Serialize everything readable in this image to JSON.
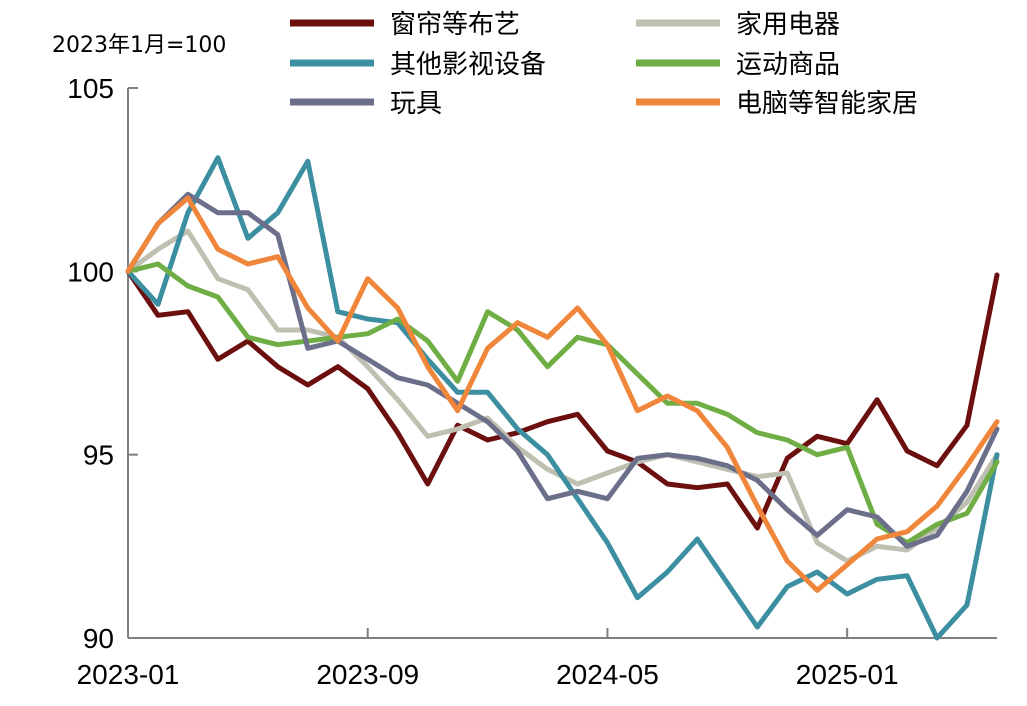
{
  "chart_data": {
    "type": "line",
    "unit_note": "2023年1月=100",
    "x": [
      "2023-01",
      "2023-02",
      "2023-03",
      "2023-04",
      "2023-05",
      "2023-06",
      "2023-07",
      "2023-08",
      "2023-09",
      "2023-10",
      "2023-11",
      "2023-12",
      "2024-01",
      "2024-02",
      "2024-03",
      "2024-04",
      "2024-05",
      "2024-06",
      "2024-07",
      "2024-08",
      "2024-09",
      "2024-10",
      "2024-11",
      "2024-12",
      "2025-01",
      "2025-02",
      "2025-03",
      "2025-04",
      "2025-05",
      "2025-06"
    ],
    "x_tick_labels": [
      "2023-01",
      "2023-09",
      "2024-05",
      "2025-01"
    ],
    "y_tick_labels": [
      "90",
      "95",
      "100",
      "105"
    ],
    "ylim": [
      90,
      105
    ],
    "series": [
      {
        "name": "窗帘等布艺",
        "color": "#6b0f0f",
        "values": [
          100,
          98.8,
          98.9,
          97.6,
          98.1,
          97.4,
          96.9,
          97.4,
          96.8,
          95.6,
          94.2,
          95.8,
          95.4,
          95.6,
          95.9,
          96.1,
          95.1,
          94.8,
          94.2,
          94.1,
          94.2,
          93.0,
          94.9,
          95.5,
          95.3,
          96.5,
          95.1,
          94.7,
          95.8,
          99.9
        ]
      },
      {
        "name": "家用电器",
        "color": "#bfbfb2",
        "values": [
          100,
          100.6,
          101.1,
          99.8,
          99.5,
          98.4,
          98.4,
          98.2,
          97.4,
          96.5,
          95.5,
          95.7,
          96.0,
          95.2,
          94.6,
          94.2,
          94.5,
          94.8,
          95.0,
          94.8,
          94.6,
          94.4,
          94.5,
          92.6,
          92.1,
          92.5,
          92.4,
          93.0,
          93.7,
          95.0
        ]
      },
      {
        "name": "其他影视设备",
        "color": "#3c8fa0",
        "values": [
          100,
          99.1,
          101.6,
          103.1,
          100.9,
          101.6,
          103.0,
          98.9,
          98.7,
          98.6,
          97.6,
          96.7,
          96.7,
          95.7,
          95.0,
          93.8,
          92.6,
          91.1,
          91.8,
          92.7,
          91.5,
          90.3,
          91.4,
          91.8,
          91.2,
          91.6,
          91.7,
          90.0,
          90.9,
          95.0
        ]
      },
      {
        "name": "运动商品",
        "color": "#6fae45",
        "values": [
          100,
          100.2,
          99.6,
          99.3,
          98.2,
          98.0,
          98.1,
          98.2,
          98.3,
          98.7,
          98.1,
          97.0,
          98.9,
          98.4,
          97.4,
          98.2,
          98.0,
          97.2,
          96.4,
          96.4,
          96.1,
          95.6,
          95.4,
          95.0,
          95.2,
          93.1,
          92.6,
          93.1,
          93.4,
          94.8
        ]
      },
      {
        "name": "玩具",
        "color": "#6b6f8a",
        "values": [
          100,
          101.3,
          102.1,
          101.6,
          101.6,
          101.0,
          97.9,
          98.1,
          97.6,
          97.1,
          96.9,
          96.4,
          95.9,
          95.1,
          93.8,
          94.0,
          93.8,
          94.9,
          95.0,
          94.9,
          94.7,
          94.3,
          93.5,
          92.8,
          93.5,
          93.3,
          92.5,
          92.8,
          94.0,
          95.7
        ]
      },
      {
        "name": "电脑等智能家居",
        "color": "#f0863a",
        "values": [
          100,
          101.3,
          102.0,
          100.6,
          100.2,
          100.4,
          99.0,
          98.1,
          99.8,
          99.0,
          97.4,
          96.2,
          97.9,
          98.6,
          98.2,
          99.0,
          98.0,
          96.2,
          96.6,
          96.2,
          95.2,
          93.6,
          92.1,
          91.3,
          92.0,
          92.7,
          92.9,
          93.6,
          94.7,
          95.9
        ]
      }
    ]
  }
}
